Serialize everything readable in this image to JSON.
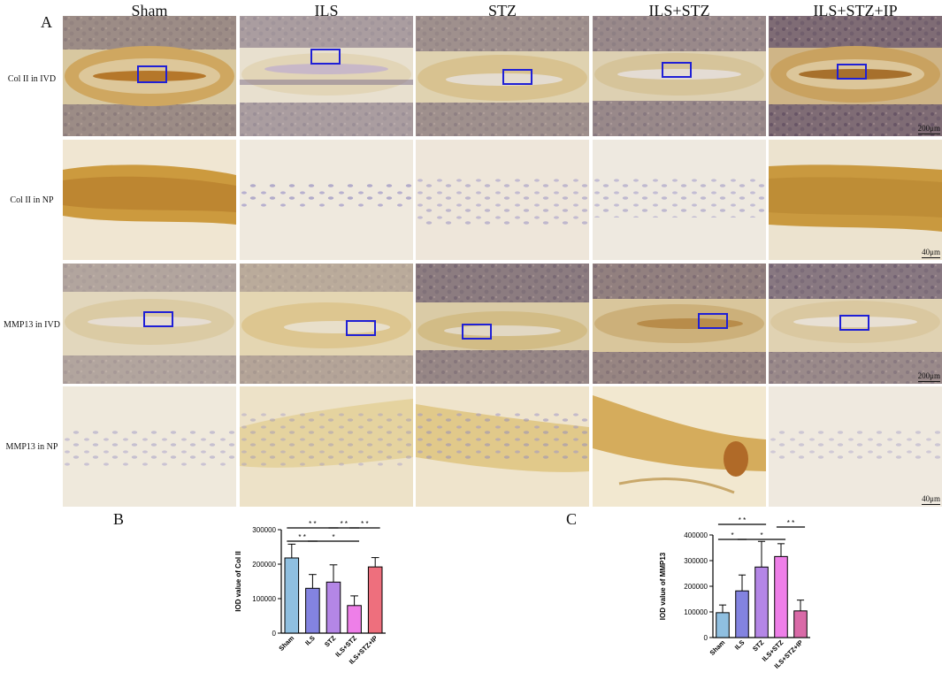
{
  "panel_labels": {
    "a": "A",
    "b": "B",
    "c": "C"
  },
  "columns": [
    "Sham",
    "ILS",
    "STZ",
    "ILS+STZ",
    "ILS+STZ+IP"
  ],
  "rows": [
    "Col II in IVD",
    "Col II in NP",
    "MMP13 in IVD",
    "MMP13 in NP"
  ],
  "scale_bars": {
    "ivd": "200μm",
    "np": "40μm"
  },
  "colors": {
    "box": "#1f1fd6",
    "bar_sham": "#8fbfe0",
    "bar_ils": "#8383e0",
    "bar_stz": "#b486e6",
    "bar_ils_stz": "#ee7fe8",
    "bar_ip_col": "#ee6f7d",
    "bar_ip_mmp": "#d96aa7"
  },
  "chart_data": [
    {
      "type": "bar",
      "categories": [
        "Sham",
        "ILS",
        "STZ",
        "ILS+STZ",
        "ILS+STZ+IP"
      ],
      "values": [
        218000,
        130000,
        148000,
        80000,
        192000
      ],
      "errors": [
        40000,
        40000,
        50000,
        28000,
        27000
      ],
      "ylabel": "IOD value of Col II",
      "ylim": [
        0,
        300000
      ],
      "yticks": [
        0,
        100000,
        200000,
        300000
      ],
      "significance": [
        {
          "from": 0,
          "to": 2,
          "label": "* *"
        },
        {
          "from": 0,
          "to": 1,
          "label": "* *"
        },
        {
          "from": 1,
          "to": 3,
          "label": "*"
        },
        {
          "from": 2,
          "to": 3,
          "label": "* *"
        },
        {
          "from": 3,
          "to": 4,
          "label": "* *"
        }
      ]
    },
    {
      "type": "bar",
      "categories": [
        "Sham",
        "ILS",
        "STZ",
        "ILS+STZ",
        "ILS+STZ+IP"
      ],
      "values": [
        97000,
        182000,
        275000,
        316000,
        104000
      ],
      "errors": [
        30000,
        62000,
        100000,
        50000,
        42000
      ],
      "ylabel": "IOD value of MMP13",
      "ylim": [
        0,
        400000
      ],
      "yticks": [
        0,
        100000,
        200000,
        300000,
        400000
      ],
      "significance": [
        {
          "from": 0,
          "to": 2,
          "label": "* *"
        },
        {
          "from": 0,
          "to": 1,
          "label": "*"
        },
        {
          "from": 1,
          "to": 3,
          "label": "*"
        },
        {
          "from": 3,
          "to": 4,
          "label": "* *"
        }
      ]
    }
  ]
}
